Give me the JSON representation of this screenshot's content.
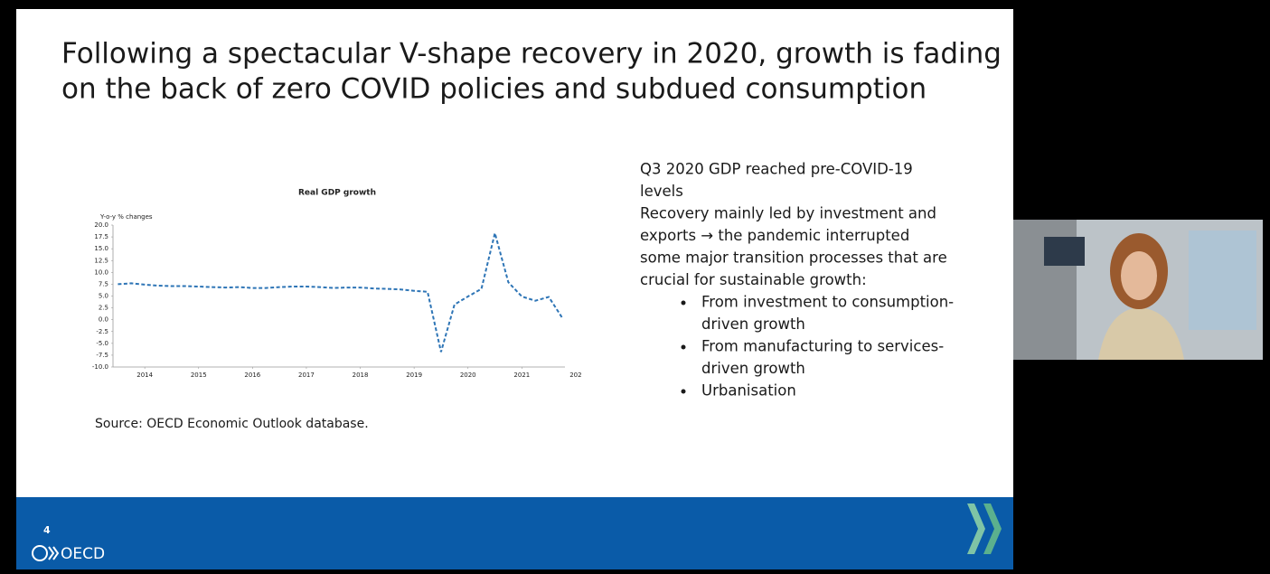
{
  "slide": {
    "title_lines": [
      "Following a spectacular V-shape recovery in 2020, growth is fading",
      "on the back of zero COVID policies and subdued consumption"
    ],
    "paragraphs": [
      [
        "Q3 2020 GDP reached pre-COVID-19",
        "levels"
      ],
      [
        "Recovery mainly led by investment and",
        "exports → the pandemic interrupted",
        "some major transition processes that are",
        "crucial for sustainable growth:"
      ]
    ],
    "bullets": [
      [
        "From investment to consumption-",
        "driven growth"
      ],
      [
        "From manufacturing to services-",
        "driven growth"
      ],
      [
        "Urbanisation"
      ]
    ],
    "source": "Source: OECD Economic Outlook database.",
    "page_number": "4",
    "logo": "OECD"
  },
  "chart_data": {
    "type": "line",
    "title": "Real GDP growth",
    "y_label": "Y-o-y % changes",
    "x": [
      2013.5,
      2013.75,
      2014,
      2014.25,
      2014.5,
      2014.75,
      2015,
      2015.25,
      2015.5,
      2015.75,
      2016,
      2016.25,
      2016.5,
      2016.75,
      2017,
      2017.25,
      2017.5,
      2017.75,
      2018,
      2018.25,
      2018.5,
      2018.75,
      2019,
      2019.25,
      2019.5,
      2019.75,
      2020,
      2020.25,
      2020.5,
      2020.75,
      2021,
      2021.25,
      2021.5,
      2021.75
    ],
    "series": [
      {
        "name": "Real GDP growth",
        "color": "#2e75b6",
        "dashed": true,
        "values": [
          7.5,
          7.7,
          7.4,
          7.2,
          7.1,
          7.1,
          7.0,
          6.9,
          6.8,
          6.9,
          6.7,
          6.7,
          6.9,
          7.0,
          7.0,
          6.9,
          6.7,
          6.8,
          6.8,
          6.6,
          6.5,
          6.4,
          6.1,
          5.9,
          -6.8,
          3.2,
          4.9,
          6.5,
          18.3,
          7.9,
          4.9,
          4.0,
          4.8,
          0.4
        ]
      }
    ],
    "xlim": [
      2013.41,
      2021.8
    ],
    "xticks": [
      2014,
      2015,
      2016,
      2017,
      2018,
      2019,
      2020,
      2021,
      {
        "value": 2022,
        "label": "202"
      }
    ],
    "ylim": [
      -10,
      20
    ],
    "yticks": [
      {
        "value": -10,
        "label": "-10.0"
      },
      -7.5,
      {
        "value": -5,
        "label": "-5.0"
      },
      -2.5,
      {
        "value": 0,
        "label": "0.0"
      },
      2.5,
      {
        "value": 5,
        "label": "5.0"
      },
      7.5,
      {
        "value": 10,
        "label": "10.0"
      },
      12.5,
      {
        "value": 15,
        "label": "15.0"
      },
      17.5,
      {
        "value": 20,
        "label": "20.0"
      }
    ],
    "grid": false
  }
}
